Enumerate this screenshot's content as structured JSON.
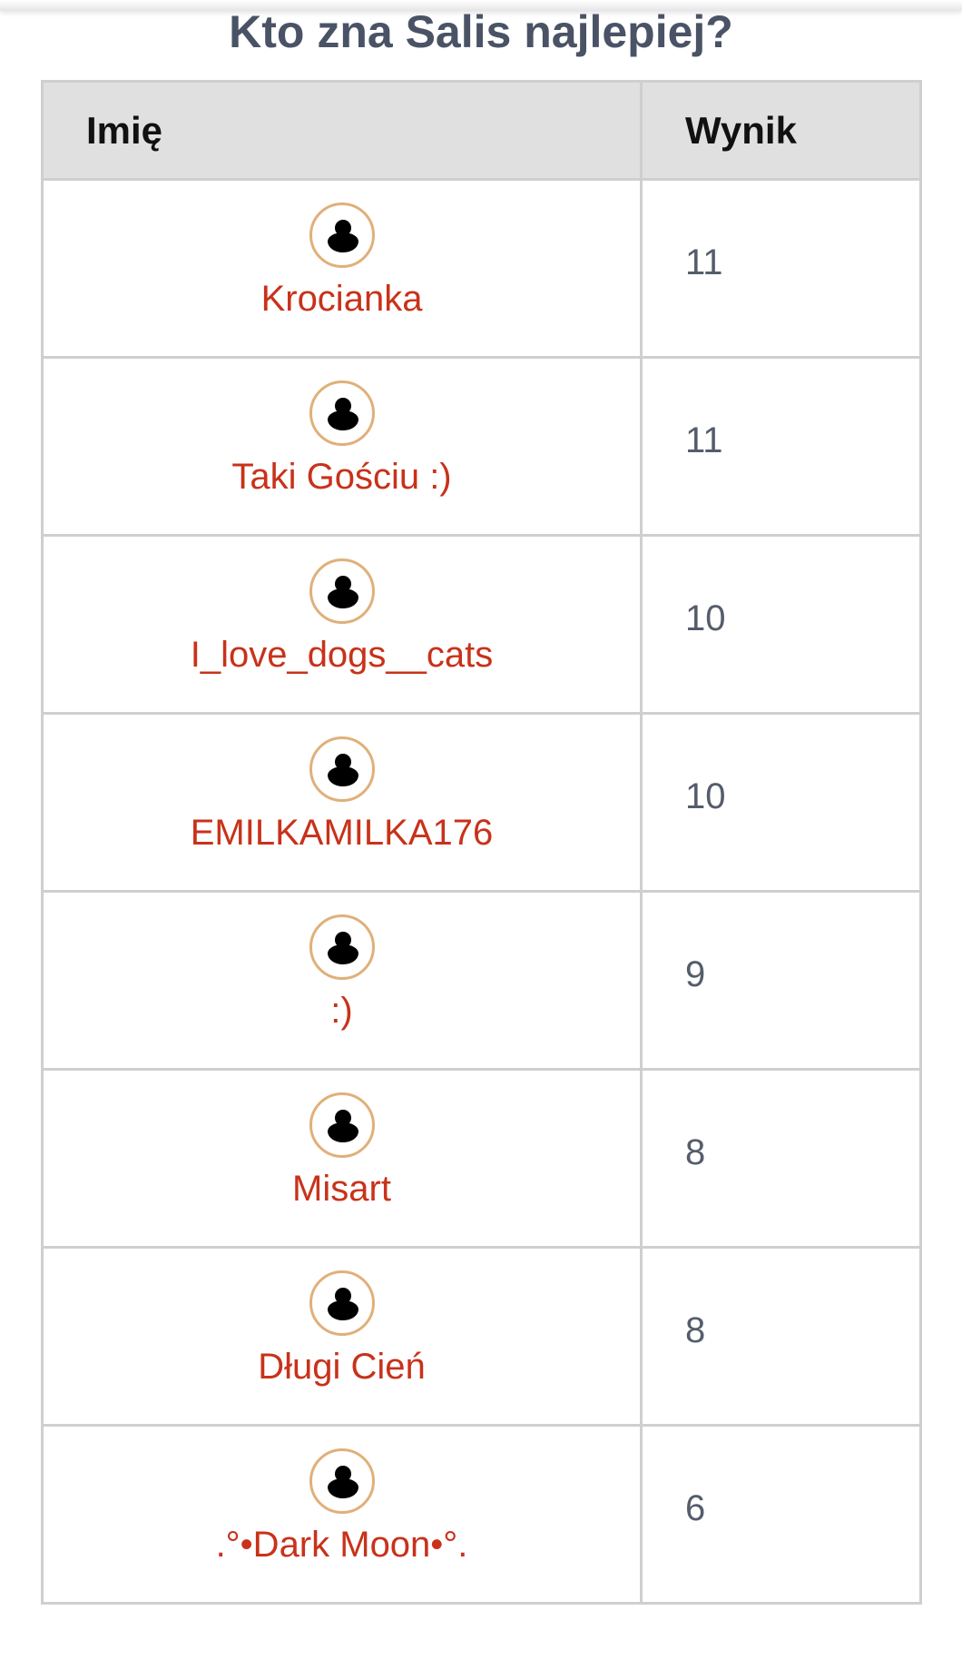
{
  "title": "Kto zna Salis najlepiej?",
  "table": {
    "headers": {
      "name": "Imię",
      "score": "Wynik"
    },
    "rows": [
      {
        "name": "Krocianka",
        "score": "11"
      },
      {
        "name": "Taki Gościu :)",
        "score": "11"
      },
      {
        "name": "I_love_dogs__cats",
        "score": "10"
      },
      {
        "name": "EMILKAMILKA176",
        "score": "10"
      },
      {
        "name": ":)",
        "score": "9"
      },
      {
        "name": "Misart",
        "score": "8"
      },
      {
        "name": "Długi Cień",
        "score": "8"
      },
      {
        "name": ".°•Dark Moon•°.",
        "score": "6"
      }
    ]
  },
  "colors": {
    "title": "#4a5366",
    "username": "#c8321a",
    "avatar_ring": "#e0b07a",
    "header_bg": "#e0e0e0"
  },
  "icons": {
    "avatar": "user-silhouette-icon"
  }
}
